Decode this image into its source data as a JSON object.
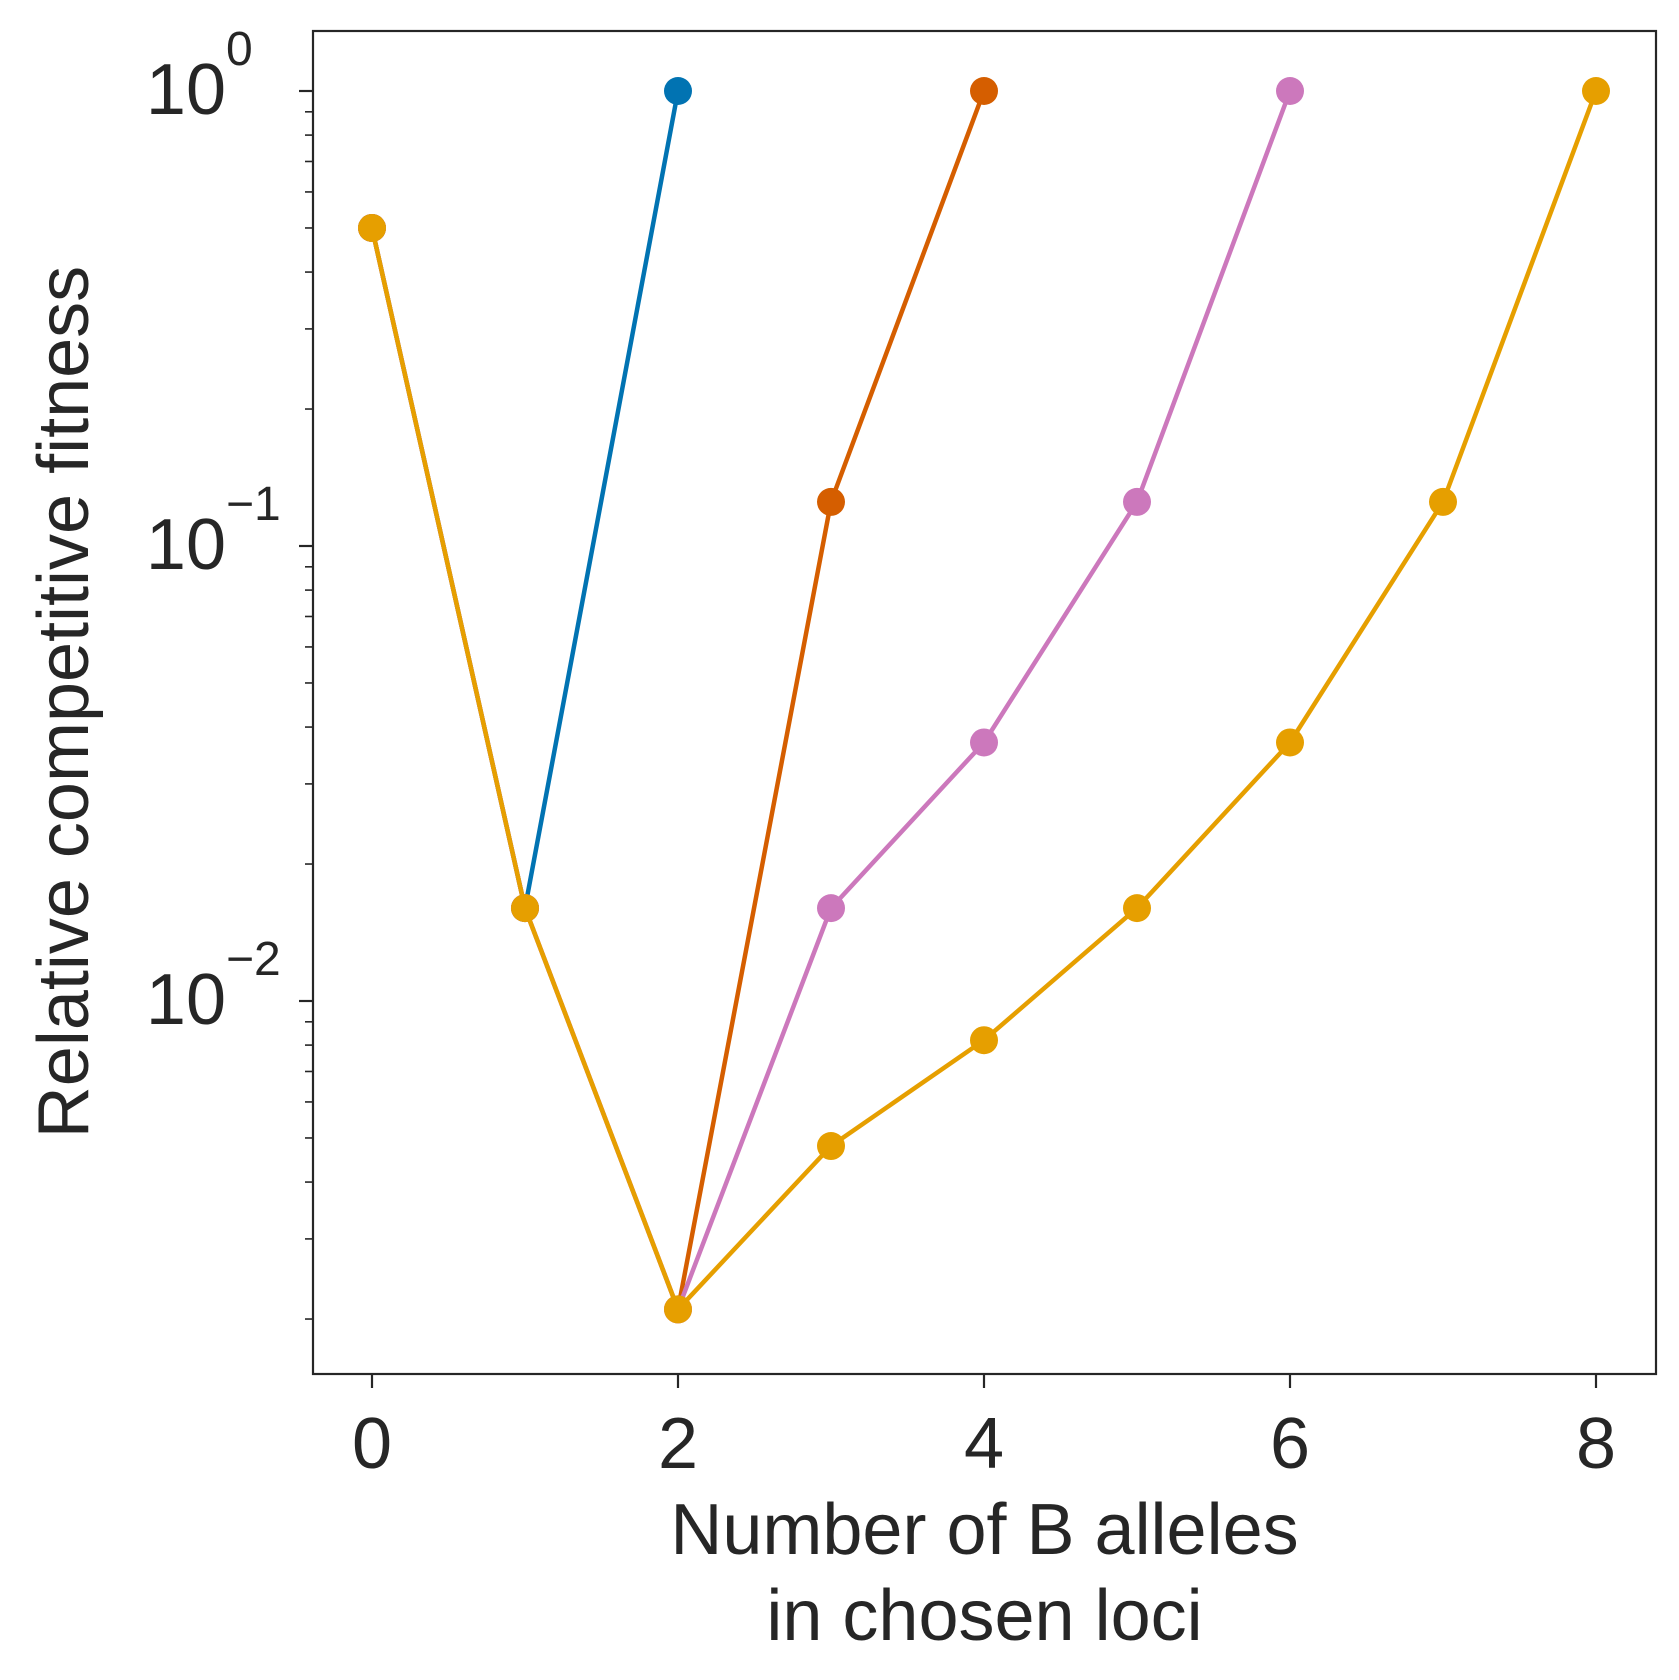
{
  "chart_data": {
    "type": "line",
    "xlabel_lines": [
      "Number of B alleles",
      "in chosen loci"
    ],
    "ylabel": "Relative competitive fitness",
    "xlim": [
      -0.4,
      8.4
    ],
    "ylim": [
      0.00175,
      1.3
    ],
    "yscale": "log",
    "x_ticks": [
      "0",
      "2",
      "4",
      "6",
      "8"
    ],
    "y_ticks": [
      {
        "value": 1,
        "base": "10",
        "exp": "0"
      },
      {
        "value": 0.1,
        "base": "10",
        "exp": "−1"
      },
      {
        "value": 0.01,
        "base": "10",
        "exp": "−2"
      }
    ],
    "grid": false,
    "series": [
      {
        "color": "#0173b2",
        "x": [
          0,
          1,
          2
        ],
        "y": [
          0.5,
          0.016,
          1.0
        ]
      },
      {
        "color": "#d55e00",
        "x": [
          0,
          1,
          2,
          3,
          4
        ],
        "y": [
          0.5,
          0.016,
          0.0021,
          0.125,
          1.0
        ]
      },
      {
        "color": "#cc78bc",
        "x": [
          0,
          1,
          2,
          3,
          4,
          5,
          6
        ],
        "y": [
          0.5,
          0.016,
          0.0021,
          0.016,
          0.037,
          0.125,
          1.0
        ]
      },
      {
        "color": "#e69f00",
        "x": [
          0,
          1,
          2,
          3,
          4,
          5,
          6,
          7,
          8
        ],
        "y": [
          0.5,
          0.016,
          0.0021,
          0.0048,
          0.0082,
          0.016,
          0.037,
          0.125,
          1.0
        ]
      }
    ]
  }
}
